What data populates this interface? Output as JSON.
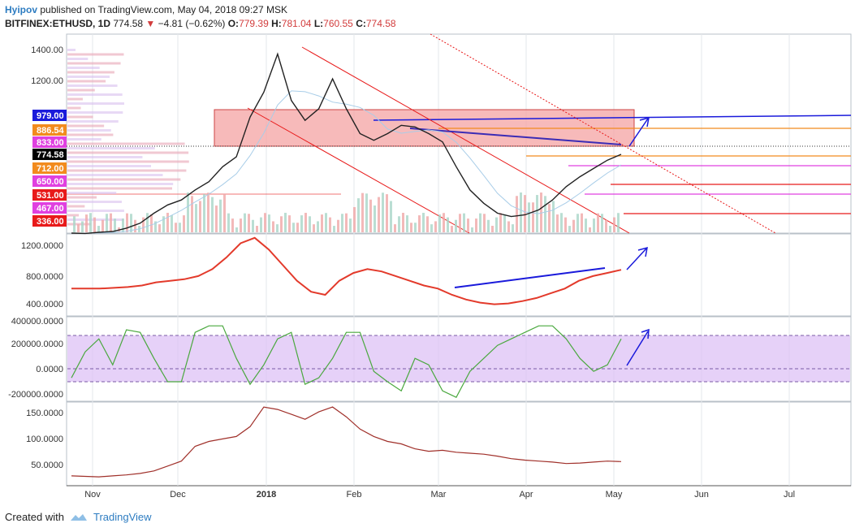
{
  "header": {
    "author": "Hyipov",
    "published": "published on TradingView.com, May 04, 2018 09:27 MSK",
    "symbol": "BITFINEX:ETHUSD, 1D",
    "last": "774.58",
    "change": "−4.81 (−0.62%)",
    "o_label": "O:",
    "o_value": "779.39",
    "h_label": "H:",
    "h_value": "781.04",
    "l_label": "L:",
    "l_value": "760.55",
    "c_label": "C:",
    "c_value": "774.58"
  },
  "footer": {
    "created_with": "Created with",
    "brand": "TradingView"
  },
  "chart_data": [
    {
      "type": "line",
      "title": "",
      "xlabels": [
        "Nov",
        "Dec",
        "2018",
        "Feb",
        "Mar",
        "Apr",
        "May",
        "Jun",
        "Jul"
      ],
      "ylim": [
        300,
        1500
      ],
      "yticks": [
        "1400.00",
        "1200.00"
      ],
      "price_labels": [
        {
          "text": "979.00",
          "value": 979,
          "color": "#1a1adb"
        },
        {
          "text": "886.54",
          "value": 886.54,
          "color": "#f28b1e"
        },
        {
          "text": "833.00",
          "value": 833,
          "color": "#e040e0"
        },
        {
          "text": "774.58",
          "value": 774.58,
          "color": "#000000"
        },
        {
          "text": "712.00",
          "value": 712,
          "color": "#f28b1e"
        },
        {
          "text": "650.00",
          "value": 650,
          "color": "#e040e0"
        },
        {
          "text": "531.00",
          "value": 531,
          "color": "#e81a1a"
        },
        {
          "text": "467.00",
          "value": 467,
          "color": "#e040e0"
        },
        {
          "text": "336.00",
          "value": 336,
          "color": "#e81a1a"
        }
      ],
      "series": [
        {
          "values": [
            300,
            298,
            305,
            310,
            330,
            360,
            420,
            470,
            500,
            560,
            610,
            700,
            760,
            1000,
            1150,
            1380,
            1100,
            980,
            1050,
            1230,
            1050,
            900,
            860,
            900,
            950,
            940,
            900,
            850,
            700,
            560,
            480,
            420,
            400,
            410,
            440,
            500,
            580,
            640,
            690,
            740,
            775
          ]
        }
      ]
    },
    {
      "type": "line",
      "yticks": [
        "1200.0000",
        "800.0000",
        "400.0000"
      ],
      "ylim": [
        250,
        1300
      ],
      "series": [
        {
          "values": [
            600,
            600,
            600,
            610,
            620,
            640,
            680,
            700,
            720,
            760,
            850,
            1000,
            1180,
            1250,
            1100,
            900,
            700,
            560,
            520,
            700,
            800,
            850,
            820,
            760,
            700,
            640,
            600,
            520,
            460,
            420,
            400,
            410,
            440,
            480,
            540,
            600,
            700,
            760,
            800,
            840
          ]
        }
      ]
    },
    {
      "type": "line",
      "yticks": [
        "400000.0000",
        "200000.0000",
        "0.0000",
        "-200000.0000"
      ],
      "ylim": [
        -230000,
        420000
      ],
      "series": [
        {
          "values": [
            -50000,
            150000,
            250000,
            50000,
            320000,
            300000,
            100000,
            -80000,
            -80000,
            300000,
            350000,
            350000,
            100000,
            -100000,
            50000,
            250000,
            300000,
            -100000,
            -50000,
            100000,
            300000,
            300000,
            0,
            -80000,
            -150000,
            100000,
            50000,
            -150000,
            -200000,
            0,
            100000,
            200000,
            250000,
            300000,
            350000,
            350000,
            250000,
            100000,
            0,
            50000,
            250000
          ]
        }
      ]
    },
    {
      "type": "line",
      "yticks": [
        "150.0000",
        "100.0000",
        "50.0000"
      ],
      "ylim": [
        0,
        170
      ],
      "series": [
        {
          "values": [
            20,
            19,
            18,
            20,
            22,
            25,
            30,
            40,
            50,
            80,
            90,
            95,
            100,
            120,
            160,
            155,
            145,
            135,
            150,
            160,
            140,
            115,
            100,
            90,
            85,
            75,
            70,
            72,
            68,
            66,
            64,
            60,
            55,
            52,
            50,
            48,
            45,
            46,
            48,
            50,
            49
          ]
        }
      ]
    }
  ]
}
